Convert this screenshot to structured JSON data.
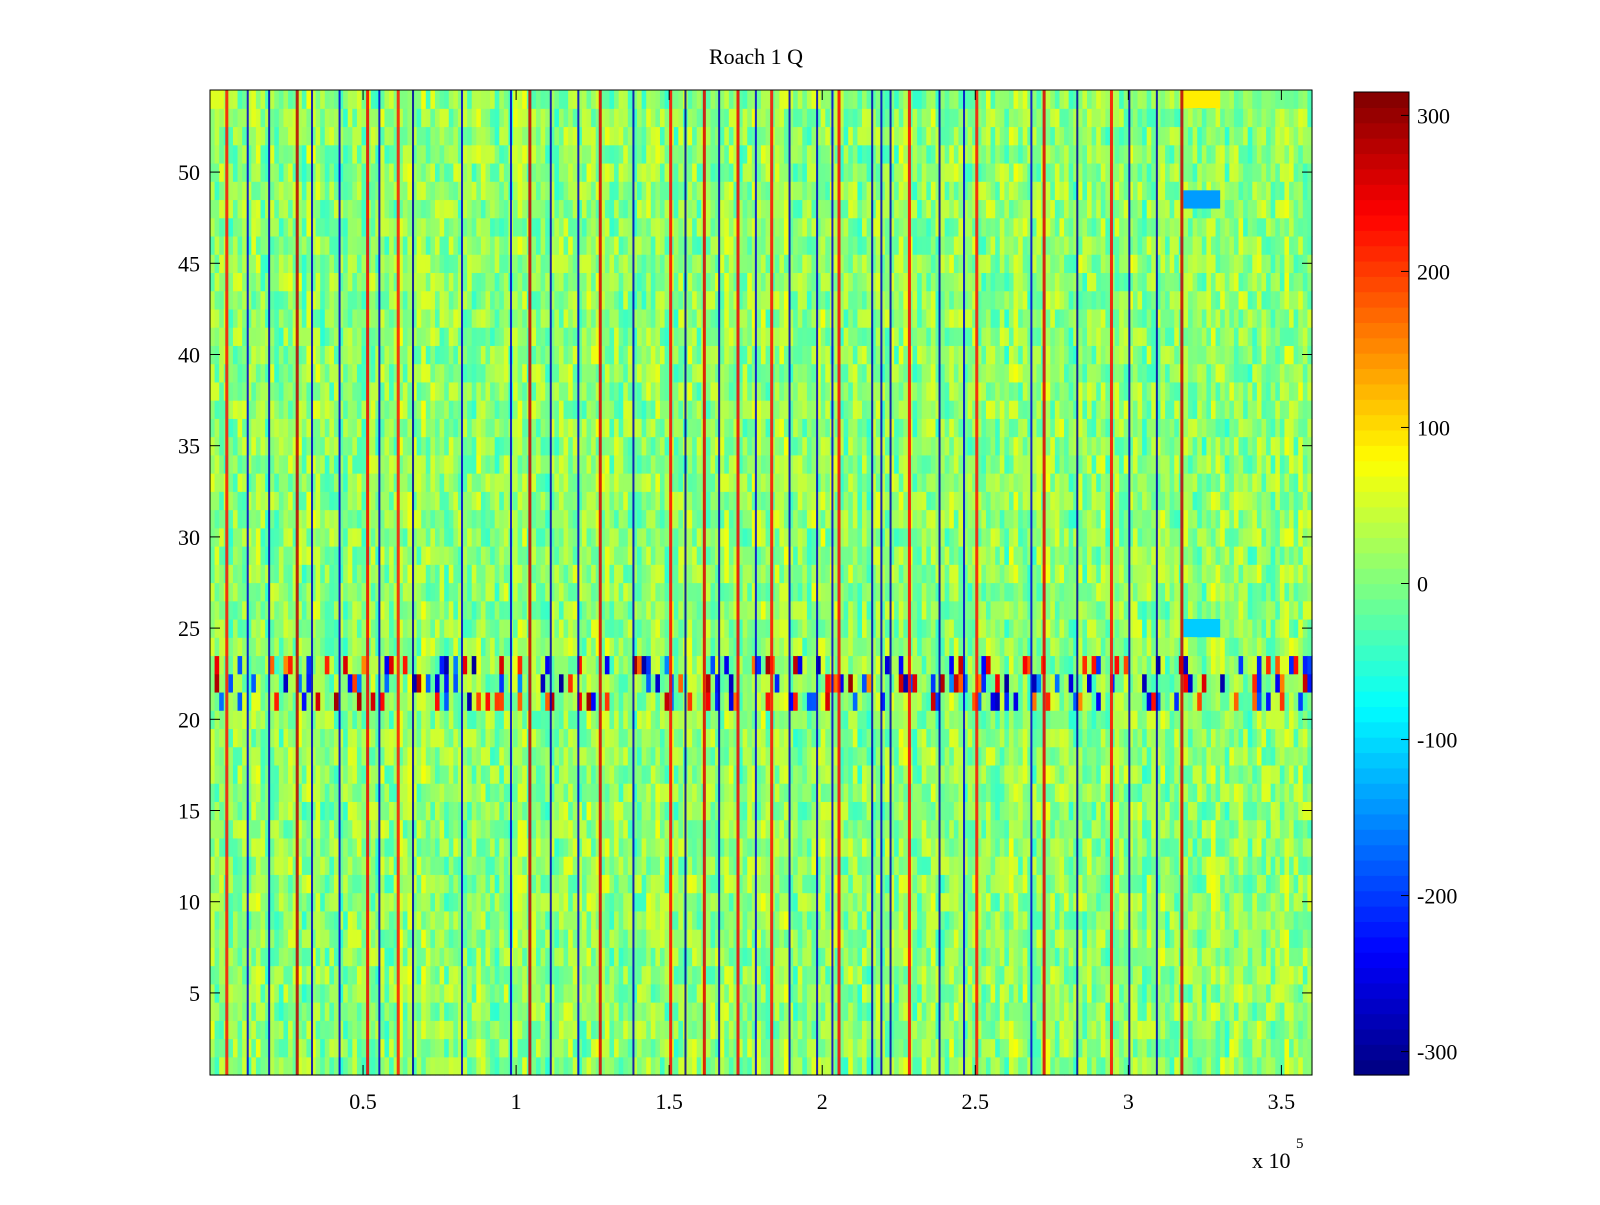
{
  "chart_data": {
    "type": "heatmap",
    "title": "Roach 1 Q",
    "xlabel": "",
    "ylabel": "",
    "x_range": [
      0,
      360000
    ],
    "y_range": [
      0.5,
      54.5
    ],
    "x_ticks": [
      50000,
      100000,
      150000,
      200000,
      250000,
      300000,
      350000
    ],
    "x_tick_labels": [
      "0.5",
      "1",
      "1.5",
      "2",
      "2.5",
      "3",
      "3.5"
    ],
    "x_exponent_label": "x 10",
    "x_exponent_power": "5",
    "y_ticks": [
      5,
      10,
      15,
      20,
      25,
      30,
      35,
      40,
      45,
      50
    ],
    "y_tick_labels": [
      "5",
      "10",
      "15",
      "20",
      "25",
      "30",
      "35",
      "40",
      "45",
      "50"
    ],
    "colorbar": {
      "colormap": "jet",
      "range": [
        -315,
        315
      ],
      "ticks": [
        -300,
        -200,
        -100,
        0,
        100,
        200,
        300
      ],
      "tick_labels": [
        "-300",
        "-200",
        "-100",
        "0",
        "100",
        "200",
        "300"
      ]
    },
    "rows": 54,
    "background_value_range": [
      -40,
      60
    ],
    "high_value_columns_x": [
      5000,
      28000,
      51000,
      61000,
      104000,
      127000,
      150000,
      161000,
      172000,
      183000,
      205000,
      228000,
      250000,
      272000,
      294000,
      317000
    ],
    "low_value_columns_x": [
      12000,
      19000,
      33000,
      42000,
      55000,
      66000,
      82000,
      98000,
      111000,
      120000,
      138000,
      155000,
      166000,
      178000,
      189000,
      198000,
      203000,
      216000,
      219000,
      222000,
      238000,
      246000,
      268000,
      283000,
      300000,
      309000
    ],
    "noisy_row_band_y": [
      21,
      23
    ],
    "low_value_patches": [
      {
        "x": [
          318000,
          330000
        ],
        "y": [
          48,
          49
        ],
        "value": -140
      },
      {
        "x": [
          318000,
          330000
        ],
        "y": [
          24.5,
          25.5
        ],
        "value": -110
      }
    ],
    "high_value_patch": {
      "x": [
        318000,
        330000
      ],
      "y": [
        53.5,
        54.5
      ],
      "value": 90
    },
    "grid": false,
    "legend": "none"
  }
}
